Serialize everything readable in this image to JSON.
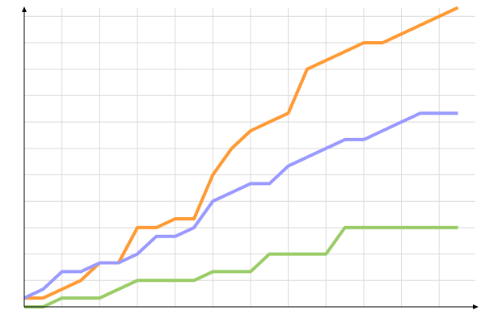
{
  "chart_data": {
    "type": "line",
    "title": "",
    "xlabel": "",
    "ylabel": "",
    "x": [
      0,
      1,
      2,
      3,
      4,
      5,
      6,
      7,
      8,
      9,
      10,
      11,
      12,
      13,
      14,
      15,
      16,
      17,
      18,
      19,
      20,
      21,
      22,
      23
    ],
    "xlim": [
      0,
      23.5
    ],
    "ylim": [
      0,
      34
    ],
    "x_grid_step": 2,
    "y_grid_step": 3,
    "grid": true,
    "legend": "none",
    "series": [
      {
        "color": "#ff9933",
        "values": [
          1,
          1,
          2,
          3,
          5,
          5,
          9,
          9,
          10,
          10,
          15,
          18,
          20,
          21,
          22,
          27,
          28,
          29,
          30,
          30,
          31,
          32,
          33,
          34
        ]
      },
      {
        "color": "#9999ff",
        "values": [
          1,
          2,
          4,
          4,
          5,
          5,
          6,
          8,
          8,
          9,
          12,
          13,
          14,
          14,
          16,
          17,
          18,
          19,
          19,
          20,
          21,
          22,
          22,
          22
        ]
      },
      {
        "color": "#99cc66",
        "values": [
          0,
          0,
          1,
          1,
          1,
          2,
          3,
          3,
          3,
          3,
          4,
          4,
          4,
          6,
          6,
          6,
          6,
          9,
          9,
          9,
          9,
          9,
          9,
          9
        ]
      }
    ]
  }
}
